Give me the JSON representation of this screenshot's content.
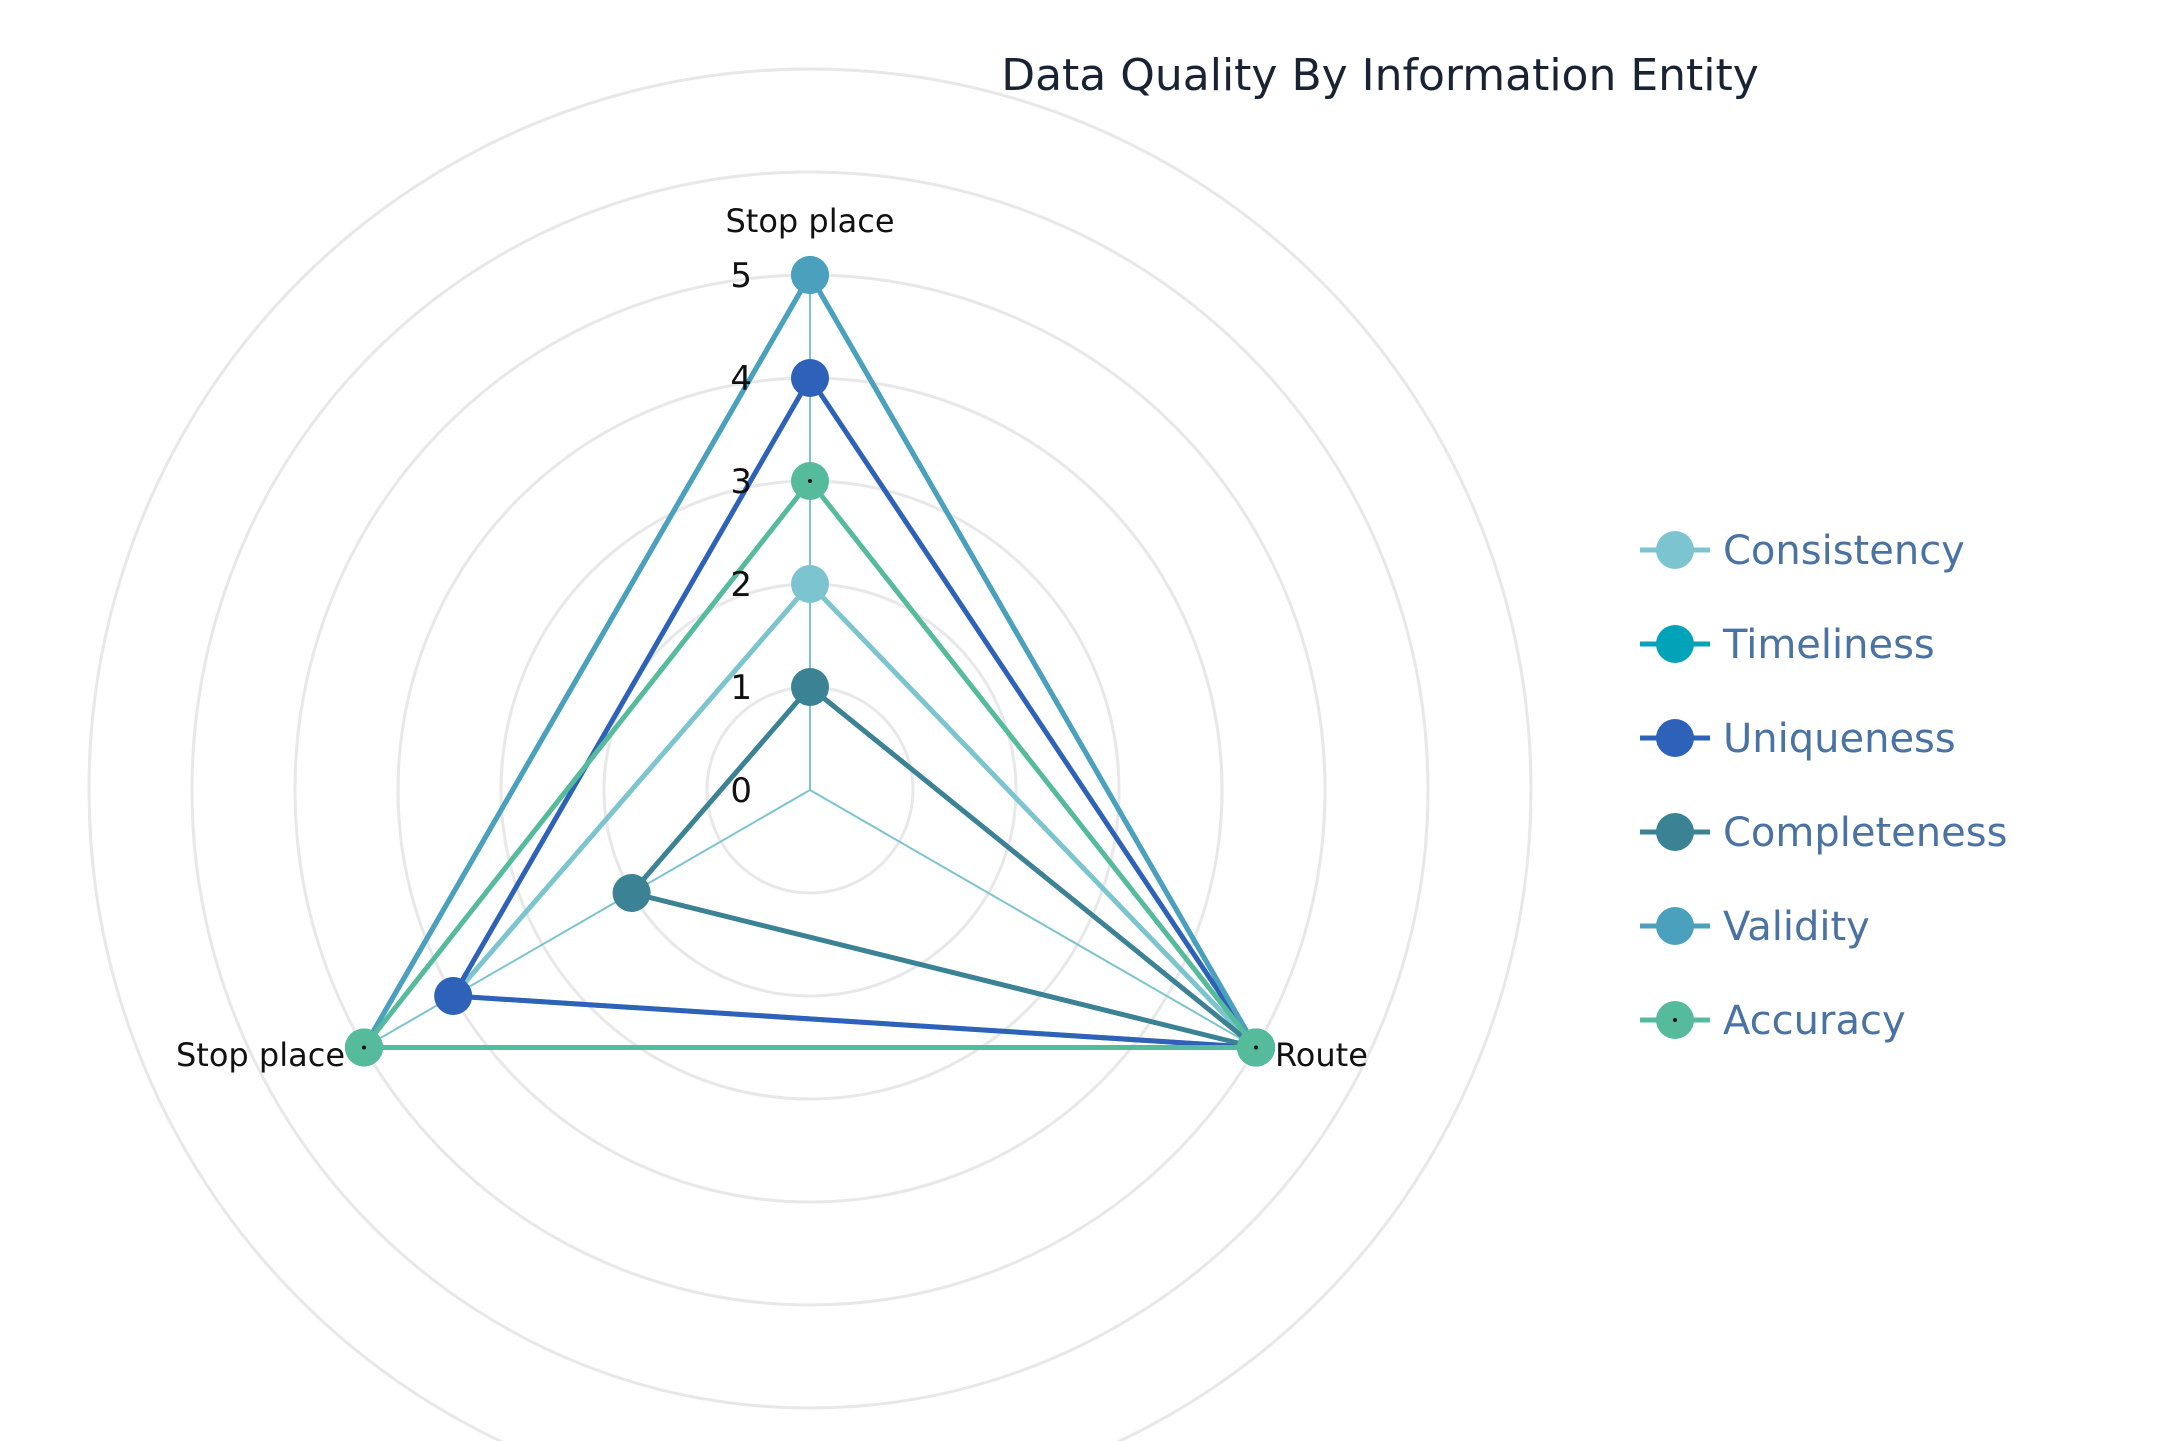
{
  "chart_data": {
    "type": "radar",
    "title": "Data Quality By Information Entity",
    "categories": [
      "Stop place",
      "Route",
      "Stop place"
    ],
    "radial_ticks": [
      "0",
      "1",
      "2",
      "3",
      "4",
      "5"
    ],
    "rlim": [
      0,
      5
    ],
    "grid": true,
    "legend_position": "right",
    "series": [
      {
        "name": "Consistency",
        "color": "#7cc4cf",
        "values": [
          2,
          5,
          4
        ]
      },
      {
        "name": "Timeliness",
        "color": "#00a3b8",
        "values": [
          5,
          5,
          5
        ]
      },
      {
        "name": "Uniqueness",
        "color": "#2d62b8",
        "values": [
          4,
          5,
          4
        ]
      },
      {
        "name": "Completeness",
        "color": "#3a8294",
        "values": [
          1,
          5,
          2
        ]
      },
      {
        "name": "Validity",
        "color": "#4aa0bd",
        "values": [
          5,
          5,
          5
        ]
      },
      {
        "name": "Accuracy",
        "color": "#55bb9b",
        "values": [
          3,
          5,
          5
        ]
      }
    ]
  }
}
